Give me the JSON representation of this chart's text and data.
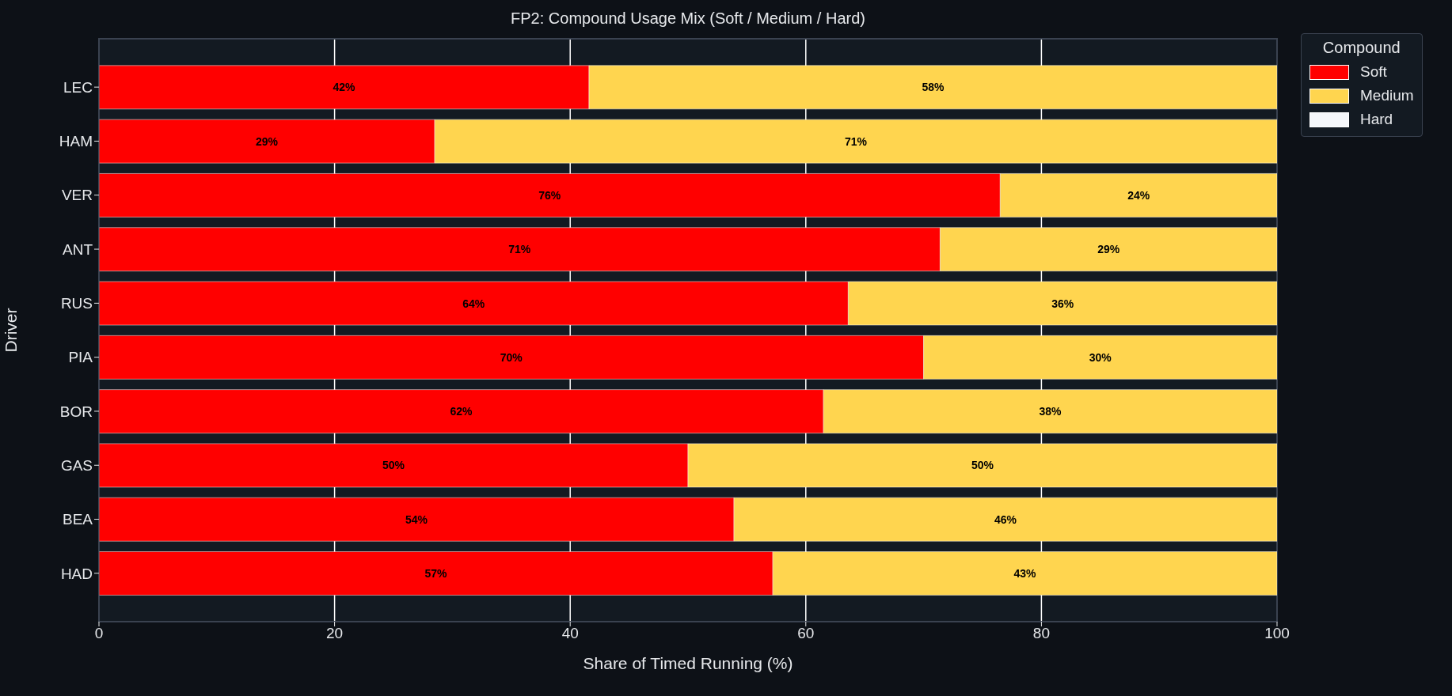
{
  "chart_data": {
    "type": "bar",
    "orientation": "horizontal",
    "stacked": true,
    "title": "FP2: Compound Usage Mix (Soft / Medium / Hard)",
    "xlabel": "Share of Timed Running (%)",
    "ylabel": "Driver",
    "legend_title": "Compound",
    "legend": "top right",
    "grid": "x",
    "categories": [
      "LEC",
      "HAM",
      "VER",
      "ANT",
      "RUS",
      "PIA",
      "BOR",
      "GAS",
      "BEA",
      "HAD"
    ],
    "xlim": [
      0,
      100
    ],
    "xticks": [
      0,
      20,
      40,
      60,
      80,
      100
    ],
    "series": [
      {
        "name": "Soft",
        "color": "#ff0000",
        "values": [
          41.6,
          28.5,
          76.5,
          71.4,
          63.6,
          70.0,
          61.5,
          50.0,
          53.9,
          57.2
        ],
        "value_labels": [
          "42%",
          "29%",
          "76%",
          "71%",
          "64%",
          "70%",
          "62%",
          "50%",
          "54%",
          "57%"
        ]
      },
      {
        "name": "Medium",
        "color": "#ffd54f",
        "values": [
          58.4,
          71.5,
          23.5,
          28.6,
          36.4,
          30.0,
          38.5,
          50.0,
          46.1,
          42.8
        ],
        "value_labels": [
          "58%",
          "71%",
          "24%",
          "29%",
          "36%",
          "30%",
          "38%",
          "50%",
          "46%",
          "43%"
        ]
      },
      {
        "name": "Hard",
        "color": "#f5f7fa",
        "values": [
          0,
          0,
          0,
          0,
          0,
          0,
          0,
          0,
          0,
          0
        ],
        "value_labels": [
          null,
          null,
          null,
          null,
          null,
          null,
          null,
          null,
          null,
          null
        ]
      }
    ]
  }
}
